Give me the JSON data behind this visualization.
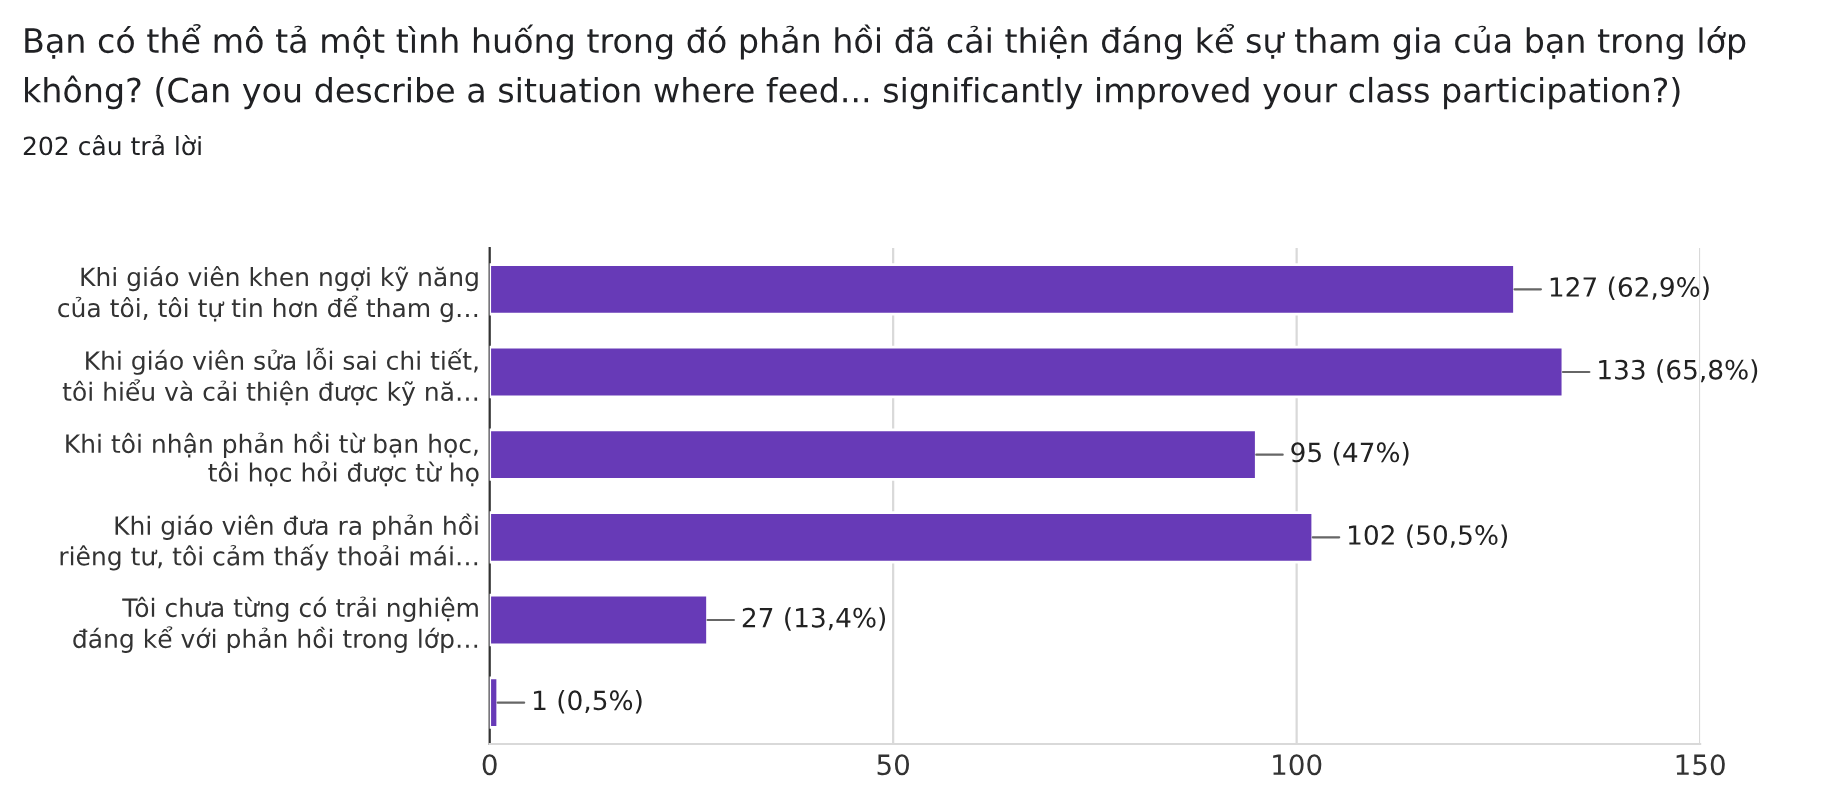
{
  "chart_data": {
    "type": "bar",
    "orientation": "horizontal",
    "title": "Bạn có thể mô tả một tình huống trong đó phản hồi đã cải thiện đáng kể sự tham gia của bạn trong lớp không? (Can you describe a situation where feed... significantly improved your class participation?)",
    "subtitle": "202 câu trả lời",
    "categories": [
      "Khi giáo viên khen ngợi kỹ năng\ncủa tôi, tôi tự tin hơn để tham g…",
      "Khi giáo viên sửa lỗi sai chi tiết,\ntôi hiểu và cải thiện được kỹ nă…",
      "Khi tôi nhận phản hồi từ bạn học,\ntôi học hỏi được từ họ",
      "Khi giáo viên đưa ra phản hồi\nriêng tư, tôi cảm thấy thoải mái…",
      "Tôi chưa từng có trải nghiệm\nđáng kể với phản hồi trong lớp…",
      null
    ],
    "values": [
      127,
      133,
      95,
      102,
      27,
      1
    ],
    "value_labels": [
      "127 (62,9%)",
      "133 (65,8%)",
      "95 (47%)",
      "102 (50,5%)",
      "27 (13,4%)",
      "1 (0,5%)"
    ],
    "color": "#673ab7",
    "xlim": [
      0,
      150
    ],
    "xticks": [
      0,
      50,
      100,
      150
    ],
    "grid": "x",
    "legend": false
  }
}
